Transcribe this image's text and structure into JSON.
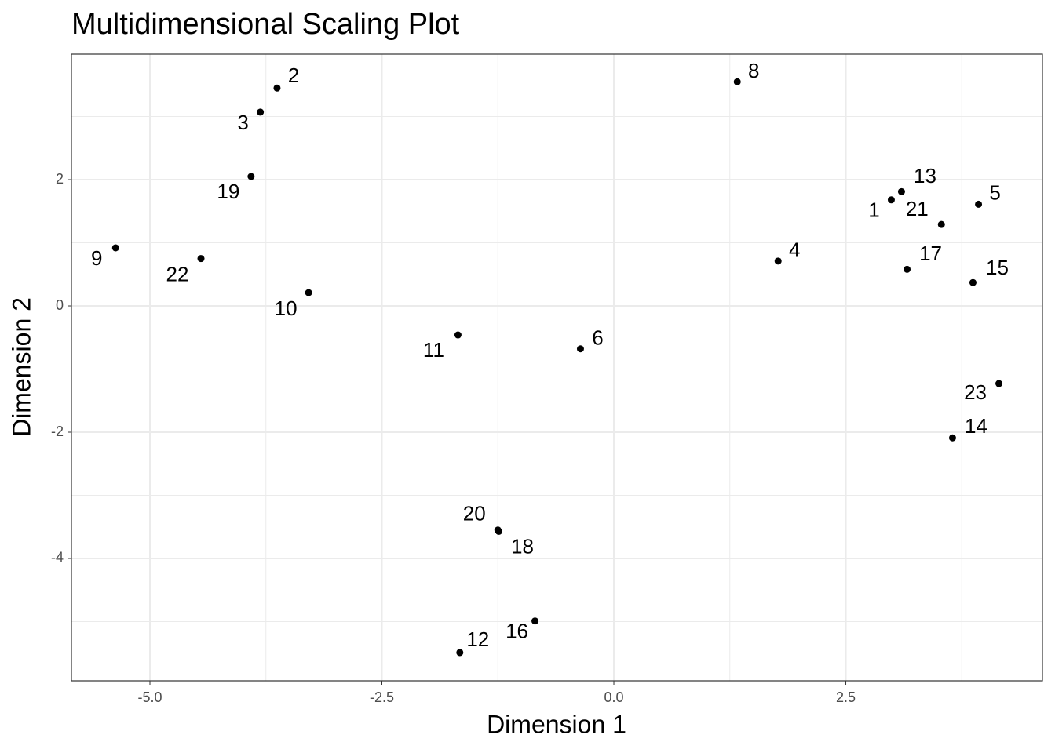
{
  "chart_data": {
    "type": "scatter",
    "title": "Multidimensional Scaling Plot",
    "x_label": "Dimension 1",
    "y_label": "Dimension 2",
    "labels": [
      "1",
      "2",
      "3",
      "4",
      "5",
      "6",
      "8",
      "9",
      "10",
      "11",
      "12",
      "13",
      "14",
      "15",
      "16",
      "17",
      "18",
      "19",
      "20",
      "21",
      "22",
      "23"
    ],
    "x": [
      2.99,
      -3.63,
      -3.81,
      1.77,
      3.93,
      -0.36,
      1.33,
      -5.37,
      -3.29,
      -1.68,
      -1.66,
      3.1,
      3.65,
      3.87,
      -0.85,
      3.16,
      -1.24,
      -3.91,
      -1.25,
      3.53,
      -4.45,
      4.15
    ],
    "y": [
      1.68,
      3.45,
      3.07,
      0.71,
      1.61,
      -0.68,
      3.55,
      0.92,
      0.21,
      -0.46,
      -5.49,
      1.81,
      -2.09,
      0.37,
      -4.99,
      0.58,
      -3.57,
      2.05,
      -3.55,
      1.29,
      0.75,
      -1.23
    ],
    "color": "#000000",
    "xlim": [
      -5.846,
      4.619
    ],
    "ylim": [
      -5.938,
      3.988
    ],
    "xticks": [
      {
        "value": -5,
        "label": "-5.0"
      },
      {
        "value": -2.5,
        "label": "-2.5"
      },
      {
        "value": 0,
        "label": "0.0"
      },
      {
        "value": 2.5,
        "label": "2.5"
      }
    ],
    "yticks": [
      -4,
      -2,
      0,
      2
    ],
    "grid": true
  }
}
